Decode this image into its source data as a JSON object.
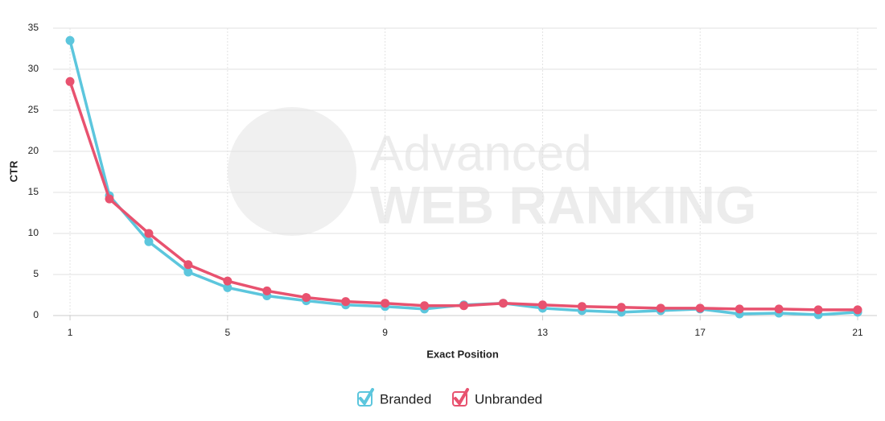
{
  "chart_data": {
    "type": "line",
    "x_label": "Exact Position",
    "y_label": "CTR",
    "watermark": [
      "Advanced",
      "WEB RANKING"
    ],
    "x": [
      1,
      2,
      3,
      4,
      5,
      6,
      7,
      8,
      9,
      10,
      11,
      12,
      13,
      14,
      15,
      16,
      17,
      18,
      19,
      20,
      21
    ],
    "series": [
      {
        "name": "Branded",
        "color": "#5cc6dd",
        "values": [
          33.5,
          14.6,
          9.0,
          5.3,
          3.4,
          2.4,
          1.8,
          1.3,
          1.1,
          0.8,
          1.3,
          1.5,
          0.9,
          0.6,
          0.4,
          0.6,
          0.8,
          0.2,
          0.3,
          0.1,
          0.4
        ]
      },
      {
        "name": "Unbranded",
        "color": "#e8526f",
        "values": [
          28.5,
          14.2,
          10.0,
          6.2,
          4.2,
          3.0,
          2.2,
          1.7,
          1.5,
          1.2,
          1.2,
          1.5,
          1.3,
          1.1,
          1.0,
          0.9,
          0.9,
          0.8,
          0.8,
          0.7,
          0.7
        ]
      }
    ],
    "xlim": [
      0.57,
      21.49
    ],
    "xticks": [
      1,
      5,
      9,
      13,
      17,
      21
    ],
    "ylim": [
      0,
      35
    ],
    "yticks": [
      0,
      5,
      10,
      15,
      20,
      25,
      30,
      35
    ],
    "grid": true,
    "legend": "bottom"
  }
}
